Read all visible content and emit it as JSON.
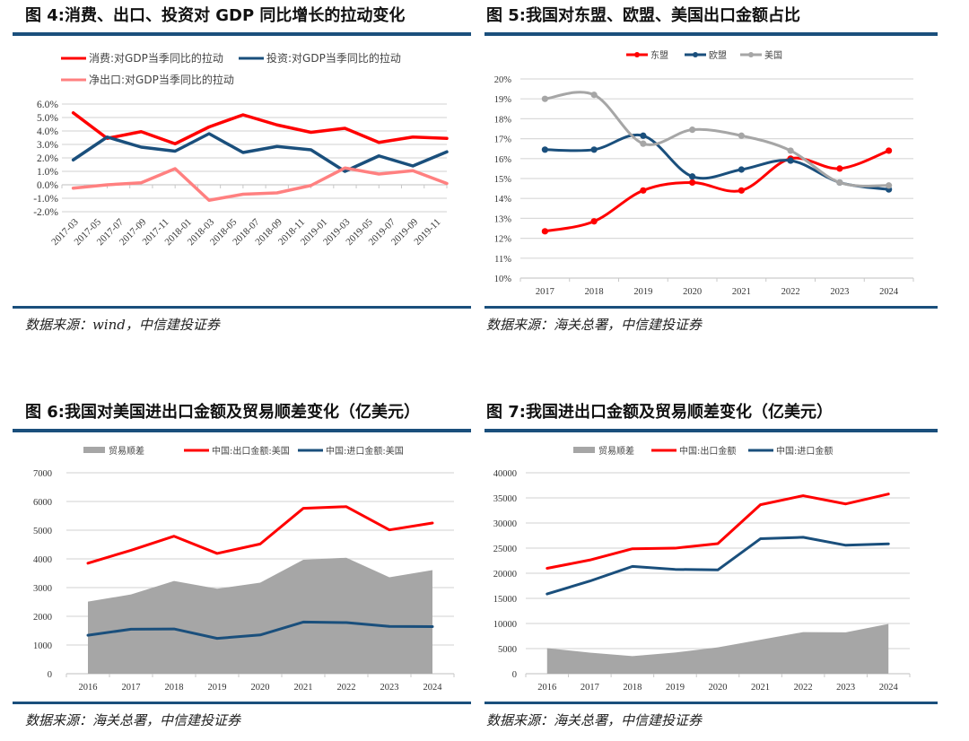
{
  "figures": [
    {
      "title": "图 4:消费、出口、投资对 GDP 同比增长的拉动变化",
      "source": "数据来源：wind，中信建投证券"
    },
    {
      "title": "图 5:我国对东盟、欧盟、美国出口金额占比",
      "source": "数据来源：海关总署，中信建投证券"
    },
    {
      "title": "图 6:我国对美国进出口金额及贸易顺差变化（亿美元）",
      "source": "数据来源：海关总署，中信建投证券"
    },
    {
      "title": "图 7:我国进出口金额及贸易顺差变化（亿美元）",
      "source": "数据来源：海关总署，中信建投证券"
    }
  ],
  "chart_data": [
    {
      "type": "line",
      "title": "图 4:消费、出口、投资对 GDP 同比增长的拉动变化",
      "xlabel": "",
      "ylabel": "",
      "x_tick_labels": [
        "2017-03",
        "2017-05",
        "2017-07",
        "2017-09",
        "2017-11",
        "2018-01",
        "2018-03",
        "2018-05",
        "2018-07",
        "2018-09",
        "2018-11",
        "2019-01",
        "2019-03",
        "2019-05",
        "2019-07",
        "2019-09",
        "2019-11"
      ],
      "x": [
        "2017-03",
        "2017-06",
        "2017-09",
        "2017-12",
        "2018-03",
        "2018-06",
        "2018-09",
        "2018-12",
        "2019-03",
        "2019-06",
        "2019-09",
        "2019-12"
      ],
      "y_ticks": [
        "-2.0%",
        "-1.0%",
        "0.0%",
        "1.0%",
        "2.0%",
        "3.0%",
        "4.0%",
        "5.0%",
        "6.0%"
      ],
      "ylim": [
        -2,
        6
      ],
      "grid": true,
      "legend": "top",
      "series": [
        {
          "name": "消费:对GDP当季同比的拉动",
          "color": "#ff0000",
          "values": [
            5.35,
            3.45,
            3.95,
            3.05,
            4.3,
            5.2,
            4.45,
            3.9,
            4.2,
            3.15,
            3.55,
            3.45
          ]
        },
        {
          "name": "投资:对GDP当季同比的拉动",
          "color": "#1a4f7c",
          "values": [
            1.85,
            3.55,
            2.8,
            2.5,
            3.8,
            2.4,
            2.85,
            2.6,
            1.0,
            2.15,
            1.4,
            2.45
          ]
        },
        {
          "name": "净出口:对GDP当季同比的拉动",
          "color": "#ff8080",
          "values": [
            -0.25,
            0.0,
            0.15,
            1.2,
            -1.15,
            -0.7,
            -0.6,
            -0.05,
            1.25,
            0.8,
            1.05,
            0.1
          ]
        }
      ]
    },
    {
      "type": "line",
      "title": "图 5:我国对东盟、欧盟、美国出口金额占比",
      "xlabel": "",
      "ylabel": "",
      "categories": [
        "2017",
        "2018",
        "2019",
        "2020",
        "2021",
        "2022",
        "2023",
        "2024"
      ],
      "y_ticks": [
        "10%",
        "11%",
        "12%",
        "13%",
        "14%",
        "15%",
        "16%",
        "17%",
        "18%",
        "19%",
        "20%"
      ],
      "ylim": [
        10,
        20
      ],
      "grid": true,
      "legend": "top",
      "series": [
        {
          "name": "东盟",
          "color": "#ff0000",
          "values": [
            12.35,
            12.85,
            14.4,
            14.8,
            14.4,
            16.0,
            15.5,
            16.4
          ]
        },
        {
          "name": "欧盟",
          "color": "#1a4f7c",
          "values": [
            16.45,
            16.45,
            17.15,
            15.1,
            15.45,
            15.9,
            14.8,
            14.45
          ]
        },
        {
          "name": "美国",
          "color": "#a6a6a6",
          "values": [
            19.0,
            19.2,
            16.75,
            17.45,
            17.15,
            16.4,
            14.8,
            14.65
          ]
        }
      ]
    },
    {
      "type": "line",
      "title": "图 6:我国对美国进出口金额及贸易顺差变化（亿美元）",
      "xlabel": "",
      "ylabel": "",
      "categories": [
        "2016",
        "2017",
        "2018",
        "2019",
        "2020",
        "2021",
        "2022",
        "2023",
        "2024"
      ],
      "y_ticks": [
        "0",
        "1000",
        "2000",
        "3000",
        "4000",
        "5000",
        "6000",
        "7000"
      ],
      "ylim": [
        0,
        7000
      ],
      "grid": true,
      "legend": "top",
      "series": [
        {
          "name": "贸易顺差",
          "type": "area",
          "color": "#a6a6a6",
          "values": [
            2510,
            2760,
            3230,
            2960,
            3170,
            3970,
            4040,
            3360,
            3610
          ]
        },
        {
          "name": "中国:出口金额:美国",
          "color": "#ff0000",
          "values": [
            3850,
            4300,
            4790,
            4190,
            4520,
            5760,
            5820,
            5010,
            5250
          ]
        },
        {
          "name": "中国:进口金额:美国",
          "color": "#1a4f7c",
          "values": [
            1340,
            1550,
            1560,
            1230,
            1350,
            1800,
            1780,
            1650,
            1640
          ]
        }
      ]
    },
    {
      "type": "line",
      "title": "图 7:我国进出口金额及贸易顺差变化（亿美元）",
      "xlabel": "",
      "ylabel": "",
      "categories": [
        "2016",
        "2017",
        "2018",
        "2019",
        "2020",
        "2021",
        "2022",
        "2023",
        "2024"
      ],
      "y_ticks": [
        "0",
        "5000",
        "10000",
        "15000",
        "20000",
        "25000",
        "30000",
        "35000",
        "40000"
      ],
      "ylim": [
        0,
        40000
      ],
      "grid": true,
      "legend": "top",
      "series": [
        {
          "name": "贸易顺差",
          "type": "area",
          "color": "#a6a6a6",
          "values": [
            5100,
            4190,
            3510,
            4220,
            5240,
            6760,
            8280,
            8230,
            9920
          ]
        },
        {
          "name": "中国:出口金额",
          "color": "#ff0000",
          "values": [
            20980,
            22630,
            24870,
            24990,
            25900,
            33640,
            35440,
            33800,
            35770
          ]
        },
        {
          "name": "中国:进口金额",
          "color": "#1a4f7c",
          "values": [
            15880,
            18440,
            21360,
            20770,
            20660,
            26870,
            27160,
            25570,
            25850
          ]
        }
      ]
    }
  ]
}
